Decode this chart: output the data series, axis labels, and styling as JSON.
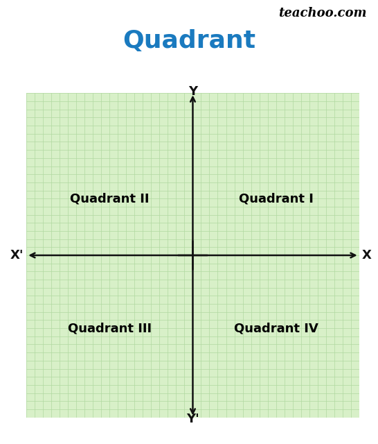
{
  "title": "Quadrant",
  "title_color": "#1a7abf",
  "title_fontsize": 26,
  "watermark": "teachoo.com",
  "watermark_fontsize": 13,
  "bg_color": "#ffffff",
  "grid_bg_color": "#d8f0c8",
  "grid_line_color": "#b0d8a0",
  "quadrant_labels": [
    "Quadrant I",
    "Quadrant II",
    "Quadrant III",
    "Quadrant IV"
  ],
  "quadrant_fontsize": 13,
  "axis_label_Y": "Y",
  "axis_label_Yprime": "Y'",
  "axis_label_X": "X",
  "axis_label_Xprime": "X'",
  "axis_label_fontsize": 13,
  "axis_color": "#111111",
  "xlim": [
    -20,
    20
  ],
  "ylim": [
    -20,
    20
  ],
  "grid_step": 1
}
